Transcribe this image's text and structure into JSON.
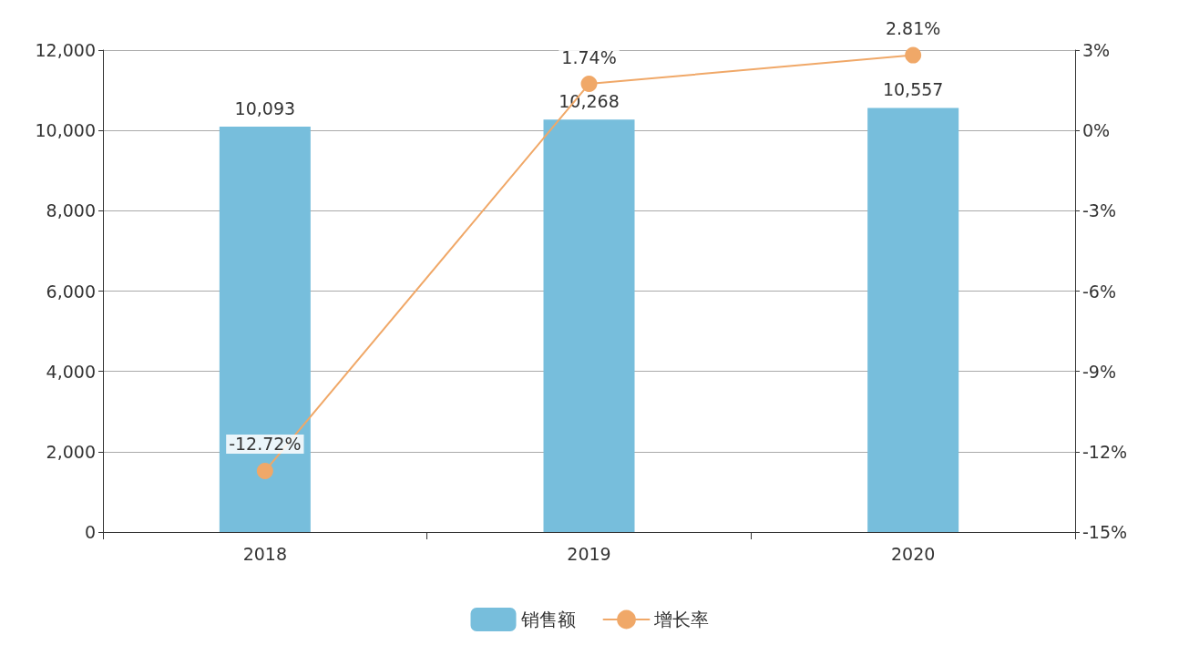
{
  "chart_data": {
    "type": "bar",
    "categories": [
      "2018",
      "2019",
      "2020"
    ],
    "series": [
      {
        "name": "销售额",
        "color": "#77bedc",
        "values": [
          10093,
          10268,
          10557
        ],
        "value_labels": [
          "10,093",
          "10,268",
          "10,557"
        ]
      },
      {
        "name": "增长率",
        "type": "line",
        "axis": "y2",
        "color": "#f0a868",
        "values": [
          -12.72,
          1.74,
          2.81
        ],
        "value_labels": [
          "-12.72%",
          "1.74%",
          "2.81%"
        ]
      }
    ],
    "ylim": [
      0,
      12000
    ],
    "yticks": [
      0,
      {
        "value": 2000,
        "label": "2,000"
      },
      {
        "value": 4000,
        "label": "4,000"
      },
      {
        "value": 6000,
        "label": "6,000"
      },
      {
        "value": 8000,
        "label": "8,000"
      },
      {
        "value": 10000,
        "label": "10,000"
      },
      {
        "value": 12000,
        "label": "12,000"
      }
    ],
    "y2lim": [
      -15,
      3
    ],
    "y2ticks": [
      {
        "value": -15,
        "label": "-15%"
      },
      {
        "value": -12,
        "label": "-12%"
      },
      {
        "value": -9,
        "label": "-9%"
      },
      {
        "value": -6,
        "label": "-6%"
      },
      {
        "value": -3,
        "label": "-3%"
      },
      {
        "value": 0,
        "label": "0%"
      },
      {
        "value": 3,
        "label": "3%"
      }
    ],
    "grid": "y",
    "legend": "bottom",
    "marker": "circle"
  }
}
